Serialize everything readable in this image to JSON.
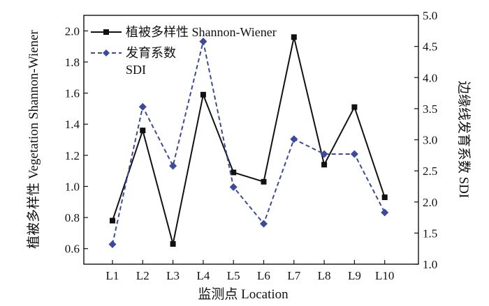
{
  "chart_data": {
    "type": "line",
    "title": "",
    "categories": [
      "L1",
      "L2",
      "L3",
      "L4",
      "L5",
      "L6",
      "L7",
      "L8",
      "L9",
      "L10"
    ],
    "xlabel": "监测点 Location",
    "ylabel_left": "植被多样性 Vegetation Shannon-Wiener",
    "ylabel_right": "边缘线发育系数 SDI",
    "ylim_left": [
      0.5,
      2.1
    ],
    "yticks_left": [
      "0.6",
      "0.8",
      "1.0",
      "1.2",
      "1.4",
      "1.6",
      "1.8",
      "2.0"
    ],
    "ylim_right": [
      1.0,
      5.0
    ],
    "yticks_right": [
      "1.0",
      "1.5",
      "2.0",
      "2.5",
      "3.0",
      "3.5",
      "4.0",
      "4.5",
      "5.0"
    ],
    "grid": false,
    "legend_position": "top-left",
    "series": [
      {
        "name": "植被多样性 Shannon-Wiener",
        "axis": "left",
        "color": "#111111",
        "line_style": "solid",
        "marker": "square",
        "values": [
          0.78,
          1.36,
          0.63,
          1.59,
          1.09,
          1.03,
          1.96,
          1.14,
          1.51,
          0.93
        ]
      },
      {
        "name_line1": "发育系数",
        "name_line2": "SDI",
        "axis": "right",
        "color": "#3b4a9a",
        "line_style": "dashed",
        "marker": "diamond",
        "values": [
          1.32,
          3.53,
          2.58,
          4.58,
          2.24,
          1.65,
          3.01,
          2.77,
          2.77,
          1.83
        ]
      }
    ]
  }
}
